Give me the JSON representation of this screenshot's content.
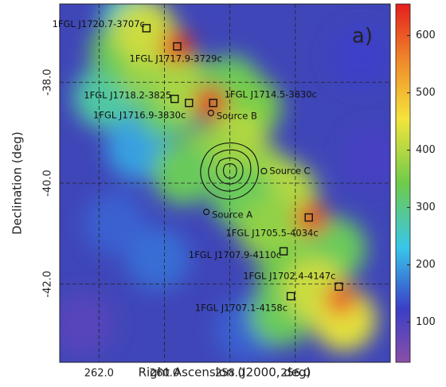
{
  "chart_data": {
    "type": "skymap",
    "panel_label": "a)",
    "x_label": "Right Ascension (J2000, deg)",
    "y_label": "Declination (deg)",
    "xlim": [
      263.2,
      253.1
    ],
    "ylim": [
      -43.55,
      -36.45
    ],
    "xticks": [
      {
        "value": 262,
        "label": "262.0"
      },
      {
        "value": 260,
        "label": "260.0"
      },
      {
        "value": 258,
        "label": "258.0"
      },
      {
        "value": 256,
        "label": "256.0"
      }
    ],
    "yticks": [
      {
        "value": -38,
        "label": "-38.0"
      },
      {
        "value": -40,
        "label": "-40.0"
      },
      {
        "value": -42,
        "label": "-42.0"
      }
    ],
    "grid": true,
    "clim": [
      30,
      655
    ],
    "cticks": [
      100,
      200,
      300,
      400,
      500,
      600
    ],
    "emission": {
      "x": [
        262.5,
        261.8,
        261.5,
        260.8,
        260.2,
        261.0,
        253.6,
        254.0,
        257.5,
        261.3,
        260.3,
        259.9,
        259.4,
        258.0,
        257.4,
        257.8,
        258.6,
        259.4,
        257.0,
        256.3,
        257.6,
        256.8,
        255.7,
        254.8,
        256.2,
        256.4,
        255.4,
        254.5,
        260.6,
        259.6,
        258.6,
        255.5,
        254.6
      ],
      "y": [
        -42.8,
        -38.3,
        -40.8,
        -39.3,
        -41.5,
        -36.8,
        -39.5,
        -37.5,
        -42.9,
        -37.4,
        -37.9,
        -38.5,
        -38.1,
        -38.1,
        -38.5,
        -39.2,
        -39.5,
        -39.8,
        -39.9,
        -40.2,
        -40.3,
        -40.9,
        -41.4,
        -41.3,
        -41.9,
        -42.6,
        -42.1,
        -42.7,
        -37.0,
        -37.3,
        -38.4,
        -40.7,
        -42.3
      ],
      "values": [
        90,
        280,
        150,
        200,
        160,
        260,
        110,
        120,
        150,
        330,
        380,
        320,
        390,
        330,
        350,
        400,
        380,
        330,
        380,
        400,
        330,
        370,
        380,
        330,
        340,
        330,
        420,
        440,
        420,
        650,
        660,
        620,
        600
      ]
    },
    "sources": {
      "labels": [
        "1FGL J1720.7-3707c",
        "1FGL J1717.9-3729c",
        "1FGL J1718.2-3825",
        "1FGL J1716.9-3830c",
        "1FGL J1714.5-3830c",
        "1FGL J1705.5-4034c",
        "1FGL J1707.9-4110c",
        "1FGL J1702.4-4147c",
        "1FGL J1707.1-4158c",
        "Source B",
        "Source C",
        "Source A"
      ],
      "x": [
        260.55,
        259.61,
        259.69,
        259.25,
        258.51,
        255.59,
        256.36,
        254.67,
        256.14,
        258.58,
        256.96,
        258.72
      ],
      "y": [
        -36.93,
        -37.29,
        -38.33,
        -38.41,
        -38.41,
        -40.68,
        -41.35,
        -42.05,
        -42.24,
        -38.61,
        -39.76,
        -40.57
      ],
      "kind": [
        "square",
        "square",
        "square",
        "square",
        "square",
        "square",
        "square",
        "square",
        "square",
        "circle",
        "circle",
        "circle"
      ]
    }
  }
}
